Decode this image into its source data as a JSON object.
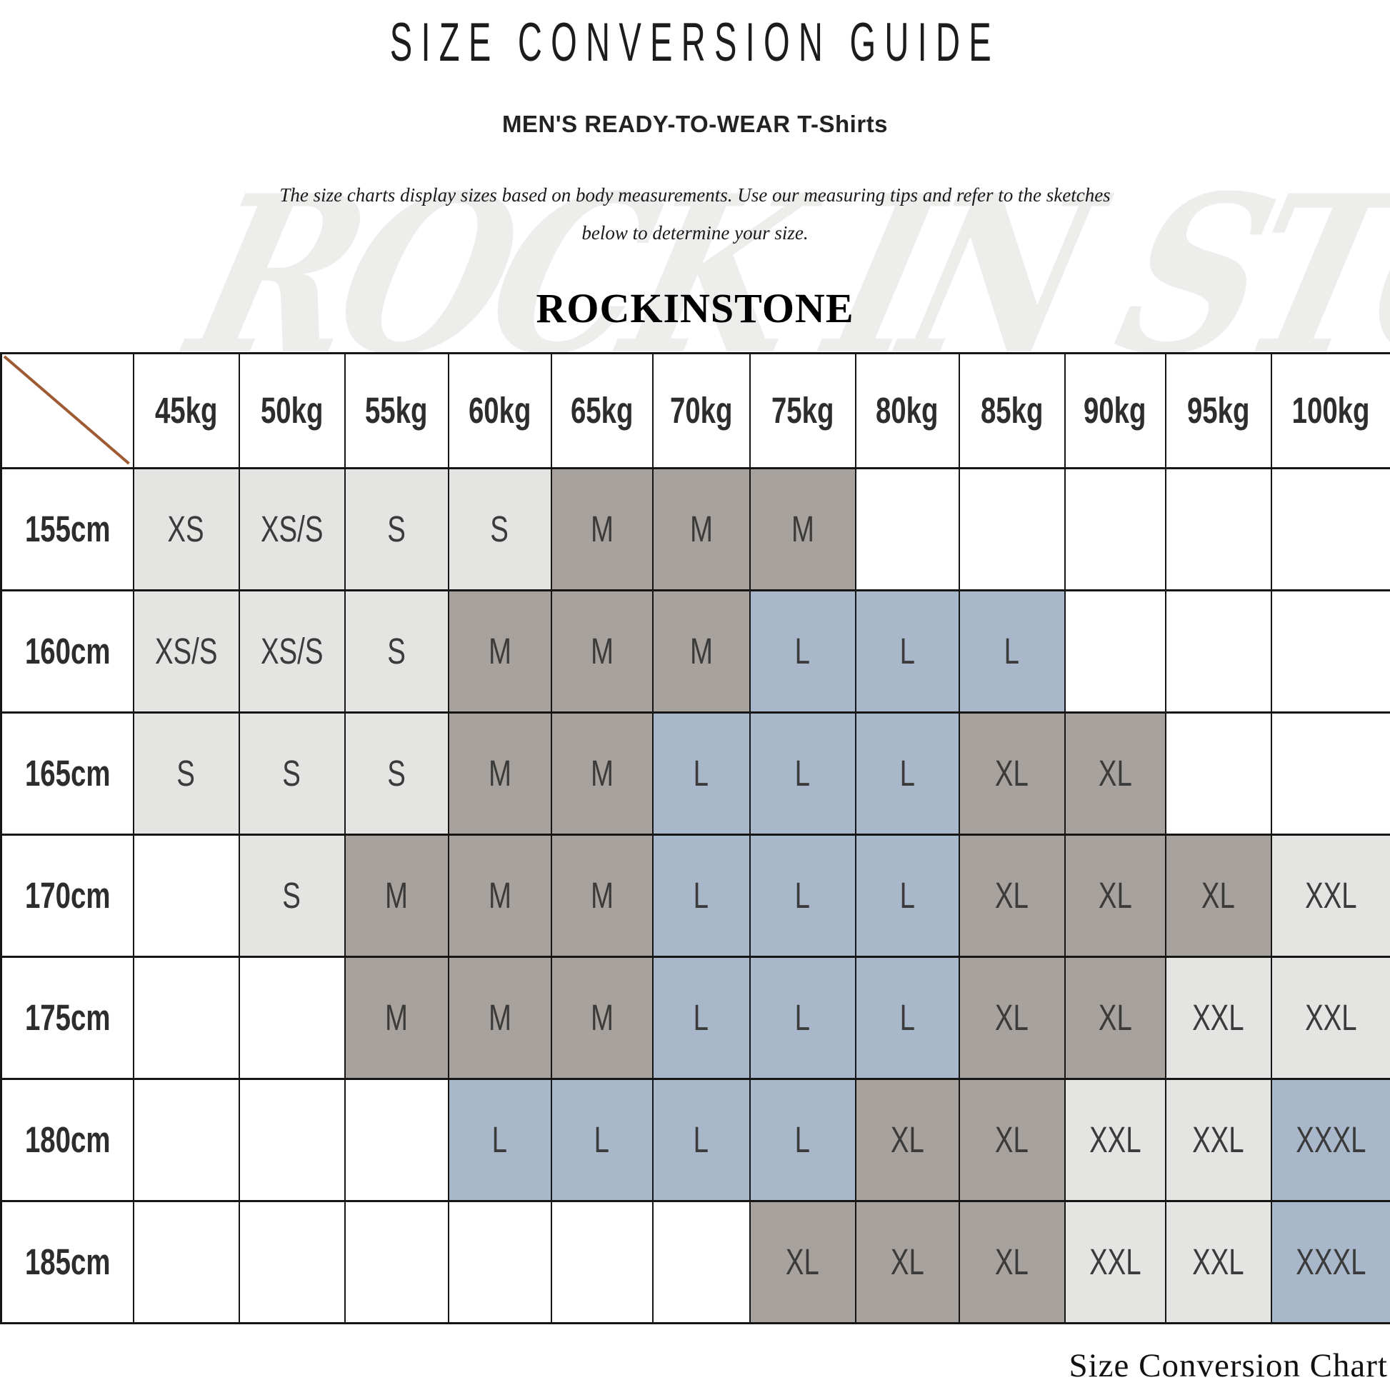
{
  "page": {
    "title": "SIZE CONVERSION GUIDE",
    "subtitle": "MEN'S READY-TO-WEAR T-Shirts",
    "description_line1": "The size charts display sizes based on body measurements.  Use our measuring tips and refer to the sketches",
    "description_line2": "below to determine your size.",
    "brand": "ROCKINSTONE",
    "watermark": "ROCK IN STONE",
    "caption": "Size Conversion Chart"
  },
  "colors": {
    "cell_light": "#e4e4e2",
    "cell_taupe": "#a7a29d",
    "cell_blue": "#a9b7ca",
    "cell_none": "#ffffff",
    "diagonal": "#9e5a33",
    "grid": "#161616",
    "cell_text": "#3b3b3b",
    "watermark": "#ededeb"
  },
  "chart_data": {
    "type": "table",
    "title": "SIZE CONVERSION GUIDE",
    "columns": [
      "45kg",
      "50kg",
      "55kg",
      "60kg",
      "65kg",
      "70kg",
      "75kg",
      "80kg",
      "85kg",
      "90kg",
      "95kg",
      "100kg"
    ],
    "rows": [
      {
        "label": "155cm",
        "cells": [
          {
            "v": "XS",
            "c": "light"
          },
          {
            "v": "XS/S",
            "c": "light"
          },
          {
            "v": "S",
            "c": "light"
          },
          {
            "v": "S",
            "c": "light"
          },
          {
            "v": "M",
            "c": "taupe"
          },
          {
            "v": "M",
            "c": "taupe"
          },
          {
            "v": "M",
            "c": "taupe"
          },
          {
            "v": "",
            "c": "none"
          },
          {
            "v": "",
            "c": "none"
          },
          {
            "v": "",
            "c": "none"
          },
          {
            "v": "",
            "c": "none"
          },
          {
            "v": "",
            "c": "none"
          }
        ]
      },
      {
        "label": "160cm",
        "cells": [
          {
            "v": "XS/S",
            "c": "light"
          },
          {
            "v": "XS/S",
            "c": "light"
          },
          {
            "v": "S",
            "c": "light"
          },
          {
            "v": "M",
            "c": "taupe"
          },
          {
            "v": "M",
            "c": "taupe"
          },
          {
            "v": "M",
            "c": "taupe"
          },
          {
            "v": "L",
            "c": "blue"
          },
          {
            "v": "L",
            "c": "blue"
          },
          {
            "v": "L",
            "c": "blue"
          },
          {
            "v": "",
            "c": "none"
          },
          {
            "v": "",
            "c": "none"
          },
          {
            "v": "",
            "c": "none"
          }
        ]
      },
      {
        "label": "165cm",
        "cells": [
          {
            "v": "S",
            "c": "light"
          },
          {
            "v": "S",
            "c": "light"
          },
          {
            "v": "S",
            "c": "light"
          },
          {
            "v": "M",
            "c": "taupe"
          },
          {
            "v": "M",
            "c": "taupe"
          },
          {
            "v": "L",
            "c": "blue"
          },
          {
            "v": "L",
            "c": "blue"
          },
          {
            "v": "L",
            "c": "blue"
          },
          {
            "v": "XL",
            "c": "taupe"
          },
          {
            "v": "XL",
            "c": "taupe"
          },
          {
            "v": "",
            "c": "none"
          },
          {
            "v": "",
            "c": "none"
          }
        ]
      },
      {
        "label": "170cm",
        "cells": [
          {
            "v": "",
            "c": "none"
          },
          {
            "v": "S",
            "c": "light"
          },
          {
            "v": "M",
            "c": "taupe"
          },
          {
            "v": "M",
            "c": "taupe"
          },
          {
            "v": "M",
            "c": "taupe"
          },
          {
            "v": "L",
            "c": "blue"
          },
          {
            "v": "L",
            "c": "blue"
          },
          {
            "v": "L",
            "c": "blue"
          },
          {
            "v": "XL",
            "c": "taupe"
          },
          {
            "v": "XL",
            "c": "taupe"
          },
          {
            "v": "XL",
            "c": "taupe"
          },
          {
            "v": "XXL",
            "c": "light"
          }
        ]
      },
      {
        "label": "175cm",
        "cells": [
          {
            "v": "",
            "c": "none"
          },
          {
            "v": "",
            "c": "none"
          },
          {
            "v": "M",
            "c": "taupe"
          },
          {
            "v": "M",
            "c": "taupe"
          },
          {
            "v": "M",
            "c": "taupe"
          },
          {
            "v": "L",
            "c": "blue"
          },
          {
            "v": "L",
            "c": "blue"
          },
          {
            "v": "L",
            "c": "blue"
          },
          {
            "v": "XL",
            "c": "taupe"
          },
          {
            "v": "XL",
            "c": "taupe"
          },
          {
            "v": "XXL",
            "c": "light"
          },
          {
            "v": "XXL",
            "c": "light"
          }
        ]
      },
      {
        "label": "180cm",
        "cells": [
          {
            "v": "",
            "c": "none"
          },
          {
            "v": "",
            "c": "none"
          },
          {
            "v": "",
            "c": "none"
          },
          {
            "v": "L",
            "c": "blue"
          },
          {
            "v": "L",
            "c": "blue"
          },
          {
            "v": "L",
            "c": "blue"
          },
          {
            "v": "L",
            "c": "blue"
          },
          {
            "v": "XL",
            "c": "taupe"
          },
          {
            "v": "XL",
            "c": "taupe"
          },
          {
            "v": "XXL",
            "c": "light"
          },
          {
            "v": "XXL",
            "c": "light"
          },
          {
            "v": "XXXL",
            "c": "blue"
          }
        ]
      },
      {
        "label": "185cm",
        "cells": [
          {
            "v": "",
            "c": "none"
          },
          {
            "v": "",
            "c": "none"
          },
          {
            "v": "",
            "c": "none"
          },
          {
            "v": "",
            "c": "none"
          },
          {
            "v": "",
            "c": "none"
          },
          {
            "v": "",
            "c": "none"
          },
          {
            "v": "XL",
            "c": "taupe"
          },
          {
            "v": "XL",
            "c": "taupe"
          },
          {
            "v": "XL",
            "c": "taupe"
          },
          {
            "v": "XXL",
            "c": "light"
          },
          {
            "v": "XXL",
            "c": "light"
          },
          {
            "v": "XXXL",
            "c": "blue"
          }
        ]
      }
    ]
  }
}
